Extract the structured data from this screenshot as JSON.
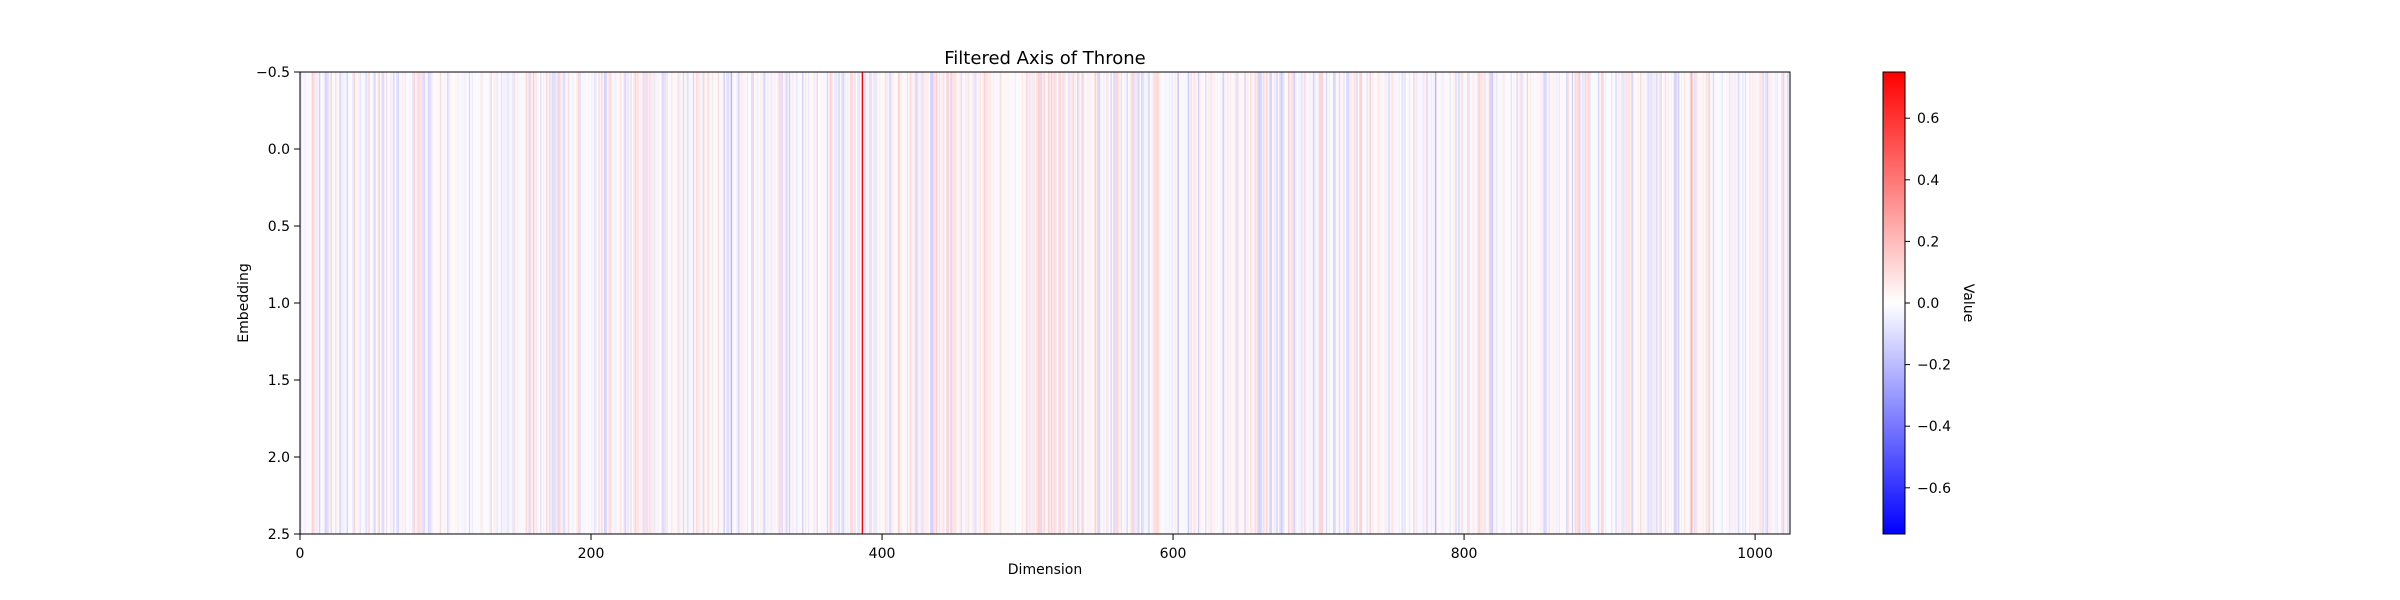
{
  "chart_data": {
    "type": "heatmap",
    "title": "Filtered Axis of Throne",
    "xlabel": "Dimension",
    "ylabel": "Embedding",
    "xlim": [
      0,
      1024
    ],
    "ylim": [
      2.5,
      -0.5
    ],
    "x_ticks": [
      0,
      200,
      400,
      600,
      800,
      1000
    ],
    "x_tick_labels": [
      "0",
      "200",
      "400",
      "600",
      "800",
      "1000"
    ],
    "y_ticks": [
      -0.5,
      0.0,
      0.5,
      1.0,
      1.5,
      2.0,
      2.5
    ],
    "y_tick_labels": [
      "−0.5",
      "0.0",
      "0.5",
      "1.0",
      "1.5",
      "2.0",
      "2.5"
    ],
    "colorbar": {
      "label": "Value",
      "colormap": "bwr",
      "vmin": -0.75,
      "vmax": 0.75,
      "ticks": [
        0.6,
        0.4,
        0.2,
        0.0,
        -0.2,
        -0.4,
        -0.6
      ],
      "tick_labels": [
        "0.6",
        "0.4",
        "0.2",
        "0.0",
        "−0.2",
        "−0.4",
        "−0.6"
      ]
    },
    "notable_columns": [
      {
        "x": 386,
        "value": 0.75
      },
      {
        "x": 296,
        "value": -0.22
      },
      {
        "x": 603,
        "value": -0.18
      },
      {
        "x": 729,
        "value": 0.14
      },
      {
        "x": 780,
        "value": -0.21
      },
      {
        "x": 956,
        "value": 0.24
      },
      {
        "x": 51,
        "value": -0.14
      }
    ],
    "background_pattern": "dense vertical streaks with small positive and negative values across all dimensions",
    "colors": {
      "negative": "#0000ff",
      "zero": "#ffffff",
      "positive": "#ff0000",
      "axis": "#000000"
    }
  }
}
